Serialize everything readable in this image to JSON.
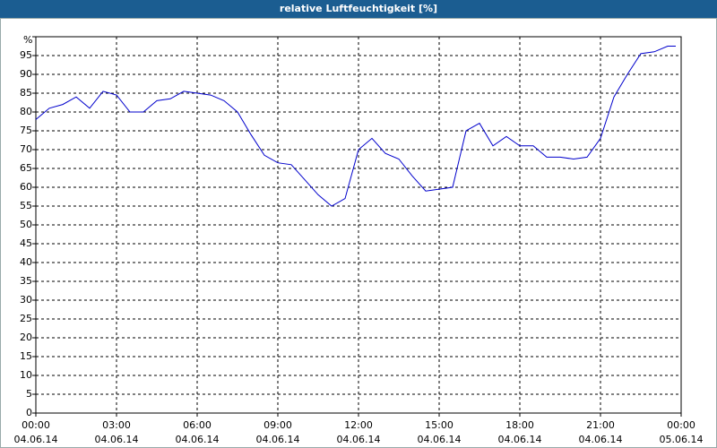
{
  "chart_data": {
    "type": "line",
    "title": "relative Luftfeuchtigkeit [%]",
    "x": [
      0,
      0.5,
      1,
      1.5,
      2,
      2.5,
      3,
      3.5,
      4,
      4.5,
      5,
      5.5,
      6,
      6.5,
      7,
      7.5,
      8,
      8.5,
      9,
      9.5,
      10,
      10.5,
      11,
      11.5,
      12,
      12.5,
      13,
      13.5,
      14,
      14.5,
      15,
      15.5,
      16,
      16.5,
      17,
      17.5,
      18,
      18.5,
      19,
      19.5,
      20,
      20.5,
      21,
      21.5,
      22,
      22.5,
      23,
      23.5,
      23.8
    ],
    "series": [
      {
        "name": "relative Luftfeuchtigkeit",
        "color": "#0000cc",
        "values": [
          78,
          81,
          82,
          84,
          81,
          85.5,
          84.5,
          80,
          80,
          83,
          83.5,
          85.5,
          85,
          84.5,
          83,
          80,
          74,
          68.5,
          66.5,
          66,
          62,
          58,
          55,
          57,
          70,
          73,
          69,
          67.5,
          63,
          59,
          59.5,
          60,
          75,
          77,
          71,
          73.5,
          71,
          71,
          68,
          68,
          67.5,
          68,
          73,
          84,
          90,
          95.5,
          96,
          97.5,
          97.5
        ]
      }
    ],
    "xlim": [
      0,
      24
    ],
    "xticks": [
      {
        "value": 0,
        "label": "00:00"
      },
      {
        "value": 3,
        "label": "03:00"
      },
      {
        "value": 6,
        "label": "06:00"
      },
      {
        "value": 9,
        "label": "09:00"
      },
      {
        "value": 12,
        "label": "12:00"
      },
      {
        "value": 15,
        "label": "15:00"
      },
      {
        "value": 18,
        "label": "18:00"
      },
      {
        "value": 21,
        "label": "21:00"
      },
      {
        "value": 24,
        "label": "00:00"
      }
    ],
    "xtick_dates": [
      "04.06.14",
      "04.06.14",
      "04.06.14",
      "04.06.14",
      "04.06.14",
      "04.06.14",
      "04.06.14",
      "04.06.14",
      "05.06.14"
    ],
    "ylim": [
      0,
      100
    ],
    "yticks": [
      0,
      5,
      10,
      15,
      20,
      25,
      30,
      35,
      40,
      45,
      50,
      55,
      60,
      65,
      70,
      75,
      80,
      85,
      90,
      95,
      {
        "value": 100,
        "label": "%"
      }
    ],
    "grid": true
  }
}
